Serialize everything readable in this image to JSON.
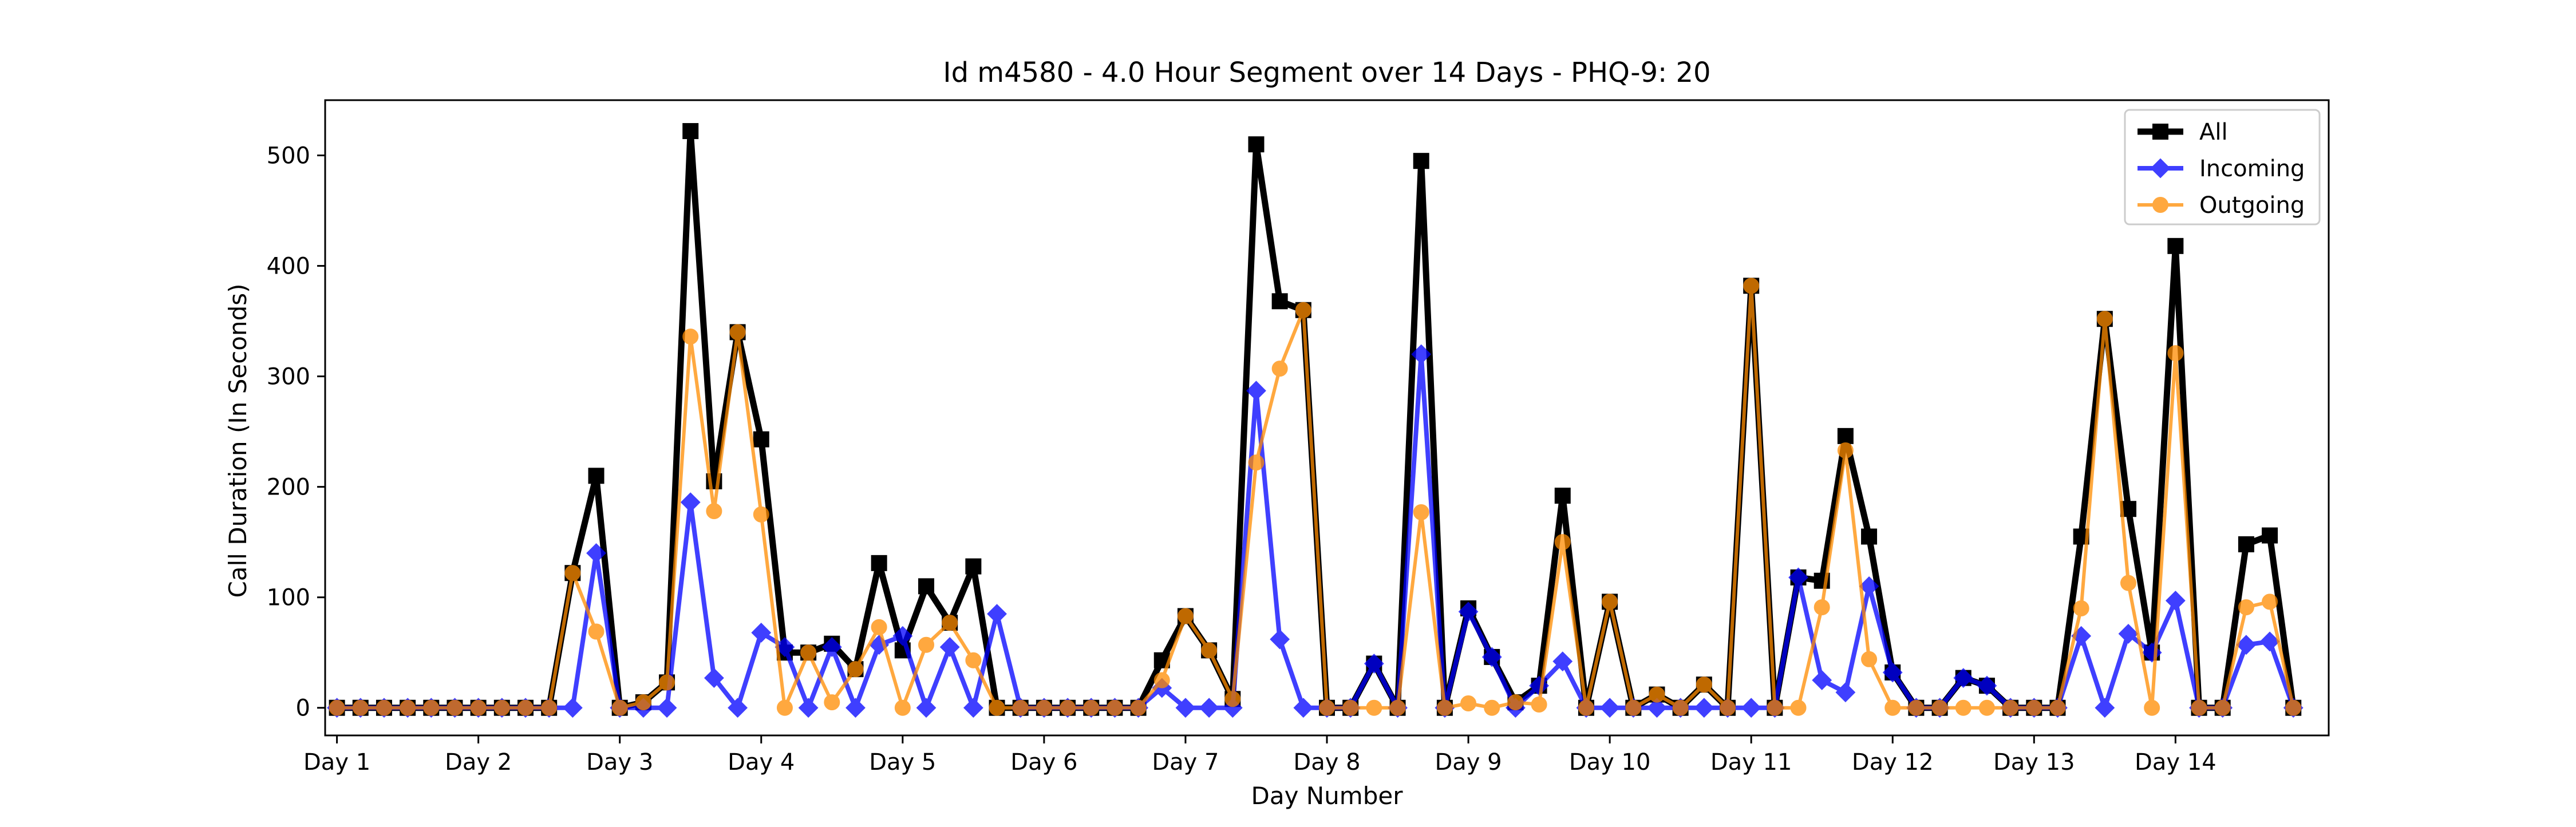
{
  "chart_data": {
    "type": "line",
    "title": "Id m4580 - 4.0 Hour Segment over 14 Days - PHQ-9: 20",
    "xlabel": "Day Number",
    "ylabel": "Call Duration (In Seconds)",
    "xlim": [
      -0.5,
      84.5
    ],
    "ylim": [
      -25,
      550
    ],
    "xticks": [
      {
        "pos": 0,
        "label": "Day 1"
      },
      {
        "pos": 6,
        "label": "Day 2"
      },
      {
        "pos": 12,
        "label": "Day 3"
      },
      {
        "pos": 18,
        "label": "Day 4"
      },
      {
        "pos": 24,
        "label": "Day 5"
      },
      {
        "pos": 30,
        "label": "Day 6"
      },
      {
        "pos": 36,
        "label": "Day 7"
      },
      {
        "pos": 42,
        "label": "Day 8"
      },
      {
        "pos": 48,
        "label": "Day 9"
      },
      {
        "pos": 54,
        "label": "Day 10"
      },
      {
        "pos": 60,
        "label": "Day 11"
      },
      {
        "pos": 66,
        "label": "Day 12"
      },
      {
        "pos": 72,
        "label": "Day 13"
      },
      {
        "pos": 78,
        "label": "Day 14"
      }
    ],
    "yticks": [
      0,
      100,
      200,
      300,
      400,
      500
    ],
    "legend_position": "top-right",
    "series": [
      {
        "name": "All",
        "color": "#000000",
        "marker": "square",
        "values": [
          0,
          0,
          0,
          0,
          0,
          0,
          0,
          0,
          0,
          0,
          122,
          210,
          0,
          5,
          23,
          522,
          205,
          340,
          243,
          50,
          50,
          58,
          35,
          131,
          52,
          110,
          77,
          128,
          0,
          0,
          0,
          0,
          0,
          0,
          0,
          43,
          83,
          52,
          8,
          510,
          368,
          360,
          0,
          0,
          40,
          0,
          495,
          0,
          90,
          46,
          5,
          20,
          192,
          0,
          96,
          0,
          12,
          0,
          21,
          0,
          382,
          0,
          118,
          115,
          246,
          155,
          32,
          0,
          0,
          27,
          20,
          0,
          0,
          0,
          155,
          352,
          180,
          50,
          418,
          0,
          0,
          148,
          156,
          0
        ]
      },
      {
        "name": "Incoming",
        "color": "#0000ff",
        "marker": "diamond",
        "values": [
          0,
          0,
          0,
          0,
          0,
          0,
          0,
          0,
          0,
          0,
          0,
          140,
          0,
          0,
          0,
          186,
          27,
          0,
          68,
          55,
          0,
          55,
          0,
          57,
          65,
          0,
          55,
          0,
          85,
          0,
          0,
          0,
          0,
          0,
          0,
          18,
          0,
          0,
          0,
          287,
          62,
          0,
          0,
          0,
          40,
          0,
          320,
          0,
          87,
          46,
          0,
          20,
          42,
          0,
          0,
          0,
          0,
          0,
          0,
          0,
          0,
          0,
          118,
          25,
          14,
          110,
          32,
          0,
          0,
          27,
          20,
          0,
          0,
          0,
          65,
          0,
          67,
          50,
          97,
          0,
          0,
          57,
          60,
          0
        ]
      },
      {
        "name": "Outgoing",
        "color": "#ff8c00",
        "marker": "circle",
        "values": [
          0,
          0,
          0,
          0,
          0,
          0,
          0,
          0,
          0,
          0,
          122,
          69,
          0,
          5,
          23,
          336,
          178,
          340,
          175,
          0,
          50,
          5,
          35,
          73,
          0,
          57,
          77,
          43,
          0,
          0,
          0,
          0,
          0,
          0,
          0,
          25,
          83,
          52,
          8,
          222,
          307,
          360,
          0,
          0,
          0,
          0,
          177,
          0,
          4,
          0,
          5,
          3,
          150,
          0,
          96,
          0,
          12,
          0,
          21,
          0,
          382,
          0,
          0,
          91,
          233,
          44,
          0,
          0,
          0,
          0,
          0,
          0,
          0,
          0,
          90,
          352,
          113,
          0,
          321,
          0,
          0,
          91,
          96,
          0
        ]
      }
    ]
  }
}
